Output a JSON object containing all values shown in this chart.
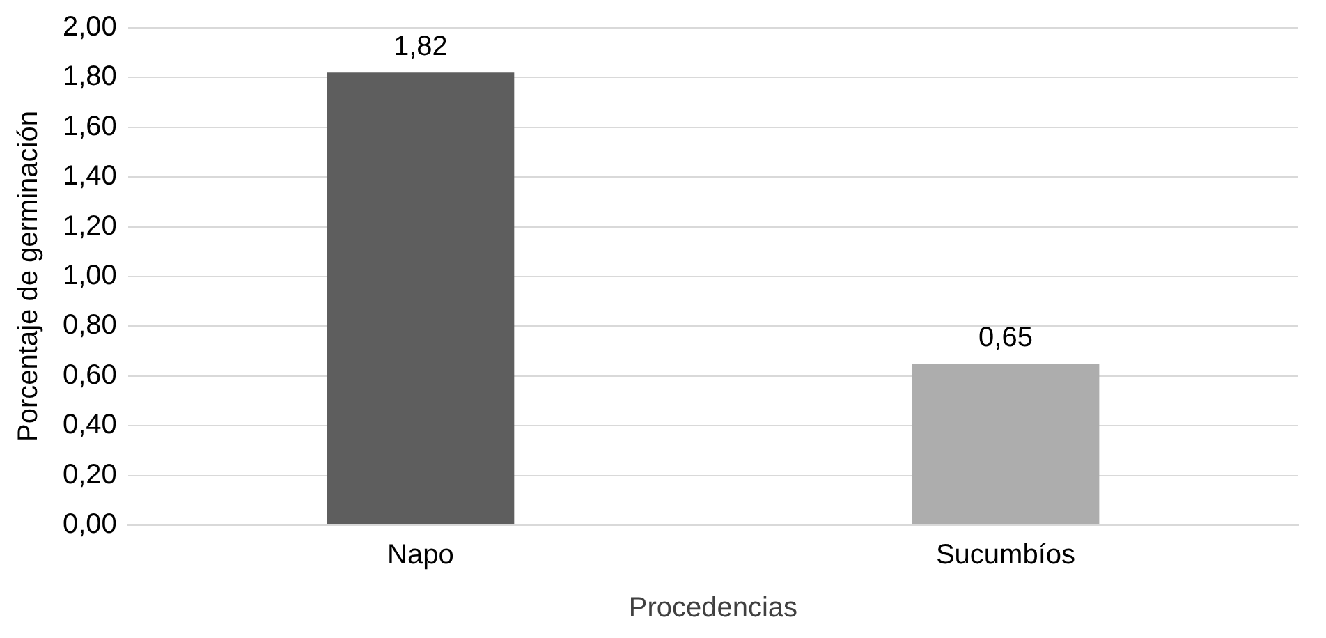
{
  "chart_data": {
    "type": "bar",
    "xlabel": "Procedencias",
    "ylabel": "Porcentaje de germinación",
    "categories": [
      "Napo",
      "Sucumbíos"
    ],
    "values": [
      1.82,
      0.65
    ],
    "colors": [
      "#5e5e5e",
      "#adadad"
    ],
    "value_labels": [
      "1,82",
      "0,65"
    ],
    "ylim": [
      0,
      2
    ],
    "yticks": [
      {
        "value": 0,
        "label": "0,00"
      },
      {
        "value": 0.2,
        "label": "0,20"
      },
      {
        "value": 0.4,
        "label": "0,40"
      },
      {
        "value": 0.6,
        "label": "0,60"
      },
      {
        "value": 0.8,
        "label": "0,80"
      },
      {
        "value": 1,
        "label": "1,00"
      },
      {
        "value": 1.2,
        "label": "1,20"
      },
      {
        "value": 1.4,
        "label": "1,40"
      },
      {
        "value": 1.6,
        "label": "1,60"
      },
      {
        "value": 1.8,
        "label": "1,80"
      },
      {
        "value": 2,
        "label": "2,00"
      }
    ],
    "grid": "y",
    "legend": false
  }
}
